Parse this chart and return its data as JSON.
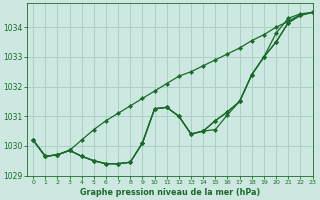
{
  "title": "Graphe pression niveau de la mer (hPa)",
  "background_color": "#cce8e0",
  "grid_color": "#aad0c8",
  "line_color": "#1a6b2a",
  "xlim": [
    -0.5,
    23
  ],
  "ylim": [
    1029.0,
    1034.8
  ],
  "yticks": [
    1029,
    1030,
    1031,
    1032,
    1033,
    1034
  ],
  "xticks": [
    0,
    1,
    2,
    3,
    4,
    5,
    6,
    7,
    8,
    9,
    10,
    11,
    12,
    13,
    14,
    15,
    16,
    17,
    18,
    19,
    20,
    21,
    22,
    23
  ],
  "series": [
    [
      1030.2,
      1029.65,
      1029.7,
      1029.85,
      1029.65,
      1029.5,
      1029.4,
      1029.4,
      1029.45,
      1029.45,
      1031.25,
      1031.3,
      1031.0,
      1030.4,
      1030.5,
      1030.55,
      1031.05,
      1031.5,
      1032.4,
      1033.0,
      1033.5,
      1034.15,
      1034.4,
      1034.5
    ],
    [
      1030.2,
      1029.65,
      1029.7,
      1029.85,
      1029.65,
      1029.5,
      1029.4,
      1029.4,
      1029.45,
      1030.1,
      1031.25,
      1031.3,
      1031.0,
      1030.4,
      1030.5,
      1030.55,
      1031.05,
      1031.5,
      1032.4,
      1033.0,
      1033.5,
      1034.15,
      1034.4,
      1034.5
    ],
    [
      1030.2,
      1029.65,
      1029.7,
      1029.85,
      1029.65,
      1029.5,
      1029.4,
      1029.4,
      1029.45,
      1030.1,
      1031.25,
      1031.3,
      1031.0,
      1030.4,
      1030.5,
      1030.85,
      1031.15,
      1031.5,
      1032.4,
      1033.0,
      1033.5,
      1034.15,
      1034.4,
      1034.5
    ],
    [
      1030.2,
      1029.65,
      1029.7,
      1029.85,
      1029.65,
      1029.5,
      1029.4,
      1029.4,
      1029.45,
      1030.1,
      1031.25,
      1031.3,
      1031.0,
      1030.4,
      1030.5,
      1030.85,
      1031.15,
      1031.5,
      1032.4,
      1033.0,
      1033.8,
      1034.3,
      1034.45,
      1034.5
    ]
  ],
  "series_straight": [
    1030.2,
    1029.65,
    1029.7,
    1030.0,
    1030.3,
    1030.6,
    1030.85,
    1031.1,
    1031.35,
    1031.6,
    1031.85,
    1032.1,
    1032.35,
    1032.5,
    1032.7,
    1032.9,
    1033.1,
    1033.3,
    1033.55,
    1033.75,
    1034.0,
    1034.2,
    1034.42,
    1034.5
  ]
}
